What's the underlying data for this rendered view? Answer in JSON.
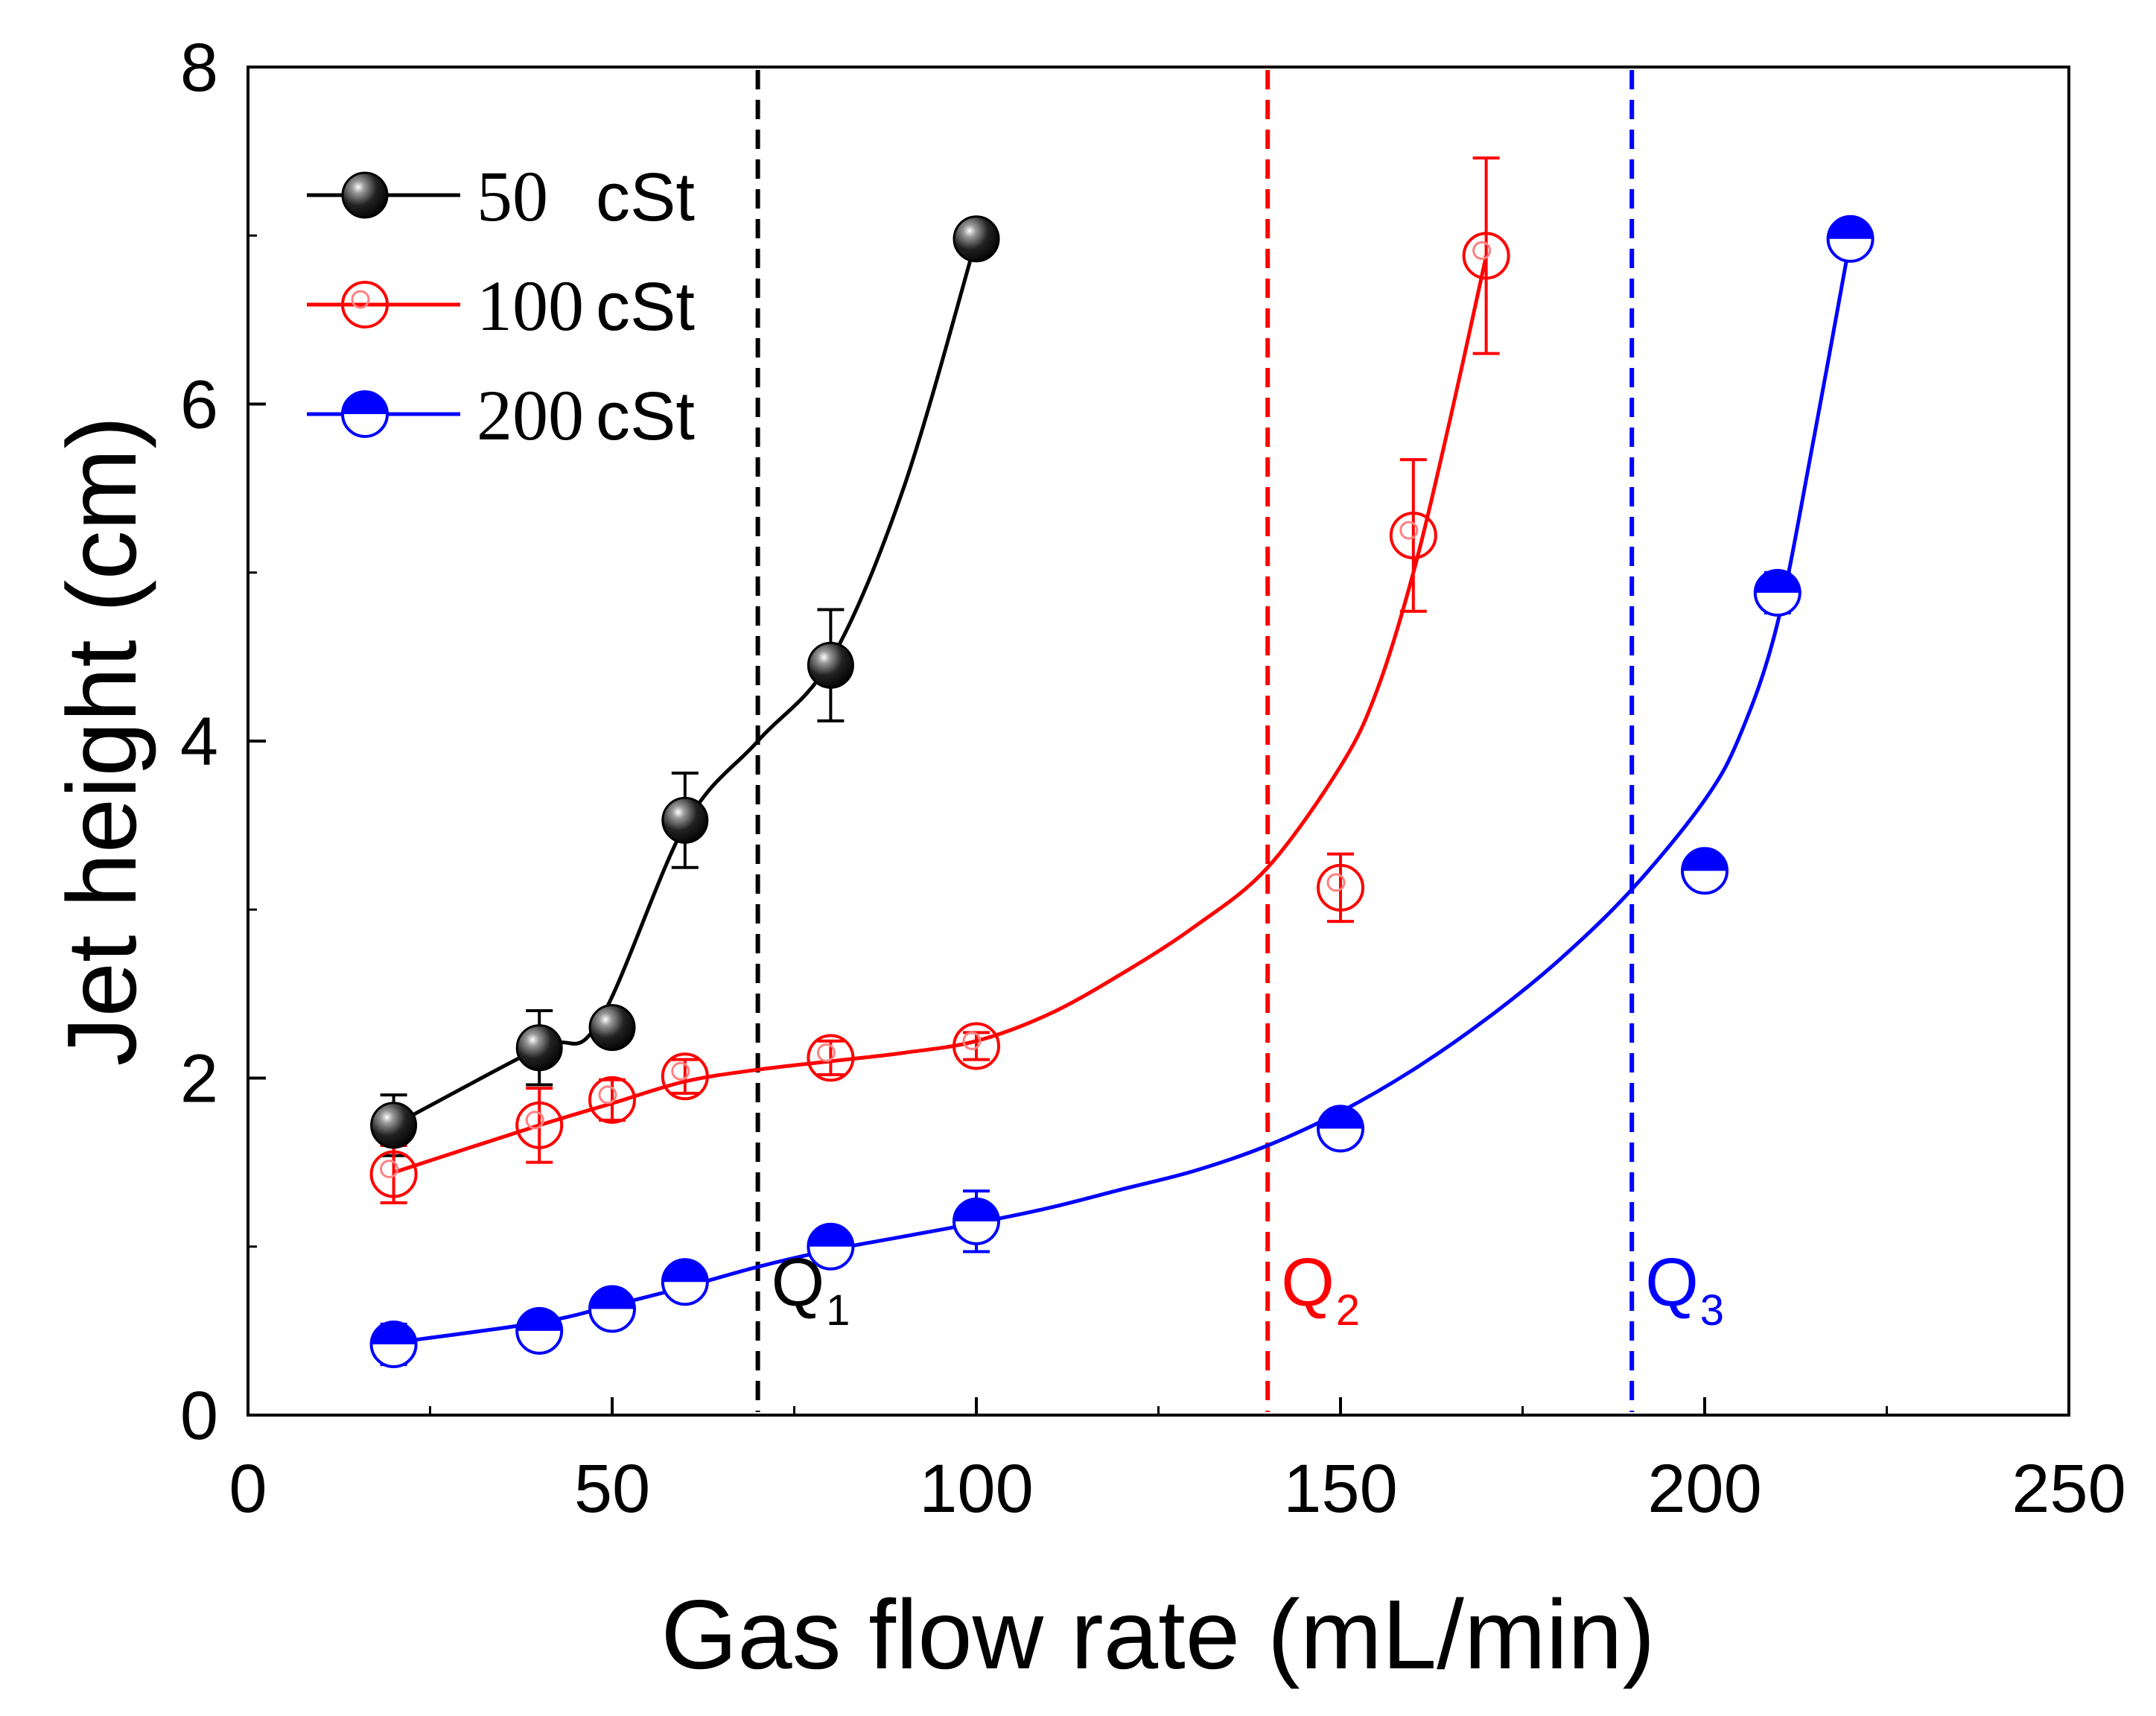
{
  "chart_data": {
    "type": "scatter",
    "title": "",
    "xlabel": "Gas flow rate (mL/min)",
    "ylabel": "Jet height (cm)",
    "xlim": [
      0,
      250
    ],
    "ylim": [
      0,
      8
    ],
    "xticks": [
      0,
      50,
      100,
      150,
      200,
      250
    ],
    "yticks": [
      0,
      2,
      4,
      6,
      8
    ],
    "x_minor_step": 25,
    "y_minor_step": 1,
    "grid": false,
    "legend_position": "top-left",
    "series": [
      {
        "name": "50",
        "unit": "cSt",
        "color": "#000000",
        "marker": "filled-sphere",
        "x": [
          20,
          40,
          50,
          60,
          80,
          100
        ],
        "y": [
          1.72,
          2.18,
          2.3,
          3.53,
          4.45,
          6.98
        ],
        "err": [
          0.18,
          0.22,
          0.1,
          0.28,
          0.33,
          0.0
        ],
        "fit": [
          [
            20,
            1.72
          ],
          [
            40,
            2.18
          ],
          [
            48,
            2.32
          ],
          [
            60,
            3.5
          ],
          [
            70,
            4.0
          ],
          [
            80,
            4.48
          ],
          [
            90,
            5.5
          ],
          [
            100,
            6.98
          ]
        ]
      },
      {
        "name": "100",
        "unit": "cSt",
        "color": "#ff0000",
        "marker": "open-circle",
        "x": [
          20,
          40,
          50,
          60,
          80,
          100,
          150,
          160,
          170
        ],
        "y": [
          1.43,
          1.72,
          1.87,
          2.01,
          2.12,
          2.19,
          3.13,
          5.22,
          6.88
        ],
        "err": [
          0.17,
          0.22,
          0.12,
          0.1,
          0.1,
          0.08,
          0.2,
          0.45,
          0.58
        ],
        "fit": [
          [
            20,
            1.44
          ],
          [
            40,
            1.72
          ],
          [
            50,
            1.85
          ],
          [
            60,
            1.98
          ],
          [
            70,
            2.05
          ],
          [
            80,
            2.1
          ],
          [
            90,
            2.15
          ],
          [
            100,
            2.22
          ],
          [
            110,
            2.38
          ],
          [
            120,
            2.62
          ],
          [
            130,
            2.9
          ],
          [
            140,
            3.25
          ],
          [
            150,
            3.85
          ],
          [
            155,
            4.3
          ],
          [
            160,
            5.0
          ],
          [
            165,
            5.9
          ],
          [
            170,
            6.88
          ]
        ]
      },
      {
        "name": "200",
        "unit": "cSt",
        "color": "#0000ff",
        "marker": "half-filled-circle",
        "x": [
          20,
          40,
          50,
          60,
          80,
          100,
          150,
          200,
          210,
          220
        ],
        "y": [
          0.42,
          0.5,
          0.63,
          0.79,
          1.0,
          1.15,
          1.7,
          3.23,
          4.88,
          6.98
        ],
        "err": [
          0.12,
          0.1,
          0.1,
          0.08,
          0.05,
          0.18,
          0.1,
          0.1,
          0.12,
          0.0
        ],
        "fit": [
          [
            20,
            0.43
          ],
          [
            40,
            0.55
          ],
          [
            50,
            0.65
          ],
          [
            60,
            0.76
          ],
          [
            70,
            0.88
          ],
          [
            80,
            0.98
          ],
          [
            90,
            1.06
          ],
          [
            100,
            1.14
          ],
          [
            110,
            1.23
          ],
          [
            120,
            1.34
          ],
          [
            130,
            1.45
          ],
          [
            140,
            1.6
          ],
          [
            150,
            1.8
          ],
          [
            160,
            2.05
          ],
          [
            170,
            2.35
          ],
          [
            180,
            2.7
          ],
          [
            190,
            3.12
          ],
          [
            200,
            3.65
          ],
          [
            205,
            4.05
          ],
          [
            210,
            4.7
          ],
          [
            215,
            5.8
          ],
          [
            220,
            6.98
          ]
        ]
      }
    ],
    "annotations": [
      {
        "label": "Q",
        "subscript": "1",
        "x": 70,
        "color": "#000000"
      },
      {
        "label": "Q",
        "subscript": "2",
        "x": 140,
        "color": "#ff0000"
      },
      {
        "label": "Q",
        "subscript": "3",
        "x": 190,
        "color": "#0000ff"
      }
    ]
  }
}
